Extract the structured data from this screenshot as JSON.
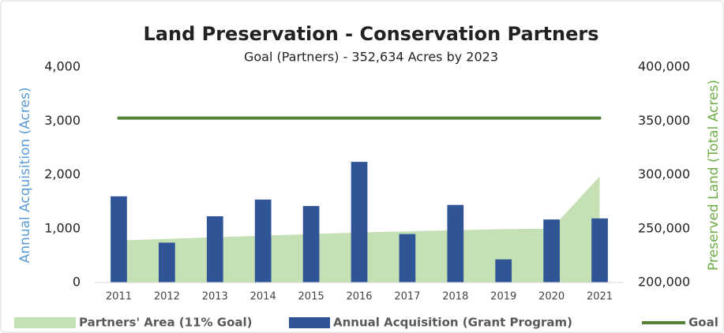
{
  "chart_data": {
    "type": "combo",
    "title": "Land Preservation - Conservation Partners",
    "subtitle": "Goal (Partners) - 352,634 Acres by 2023",
    "y_label": "Annual Acquisition (Acres)",
    "y2_label": "Preserved Land (Total Acres)",
    "categories": [
      "2011",
      "2012",
      "2013",
      "2014",
      "2015",
      "2016",
      "2017",
      "2018",
      "2019",
      "2020",
      "2021"
    ],
    "series": [
      {
        "name": "Partners' Area (11% Goal)",
        "type": "area",
        "axis": "y2",
        "color": "#c5e0b4",
        "values": [
          239000,
          240500,
          242000,
          243500,
          245000,
          246500,
          247500,
          248500,
          249500,
          250000,
          298500
        ]
      },
      {
        "name": "Annual Acquisition  (Grant Program)",
        "type": "bar",
        "axis": "y",
        "color": "#2f5597",
        "values": [
          1600,
          740,
          1230,
          1540,
          1420,
          2240,
          900,
          1440,
          430,
          1170,
          1190
        ]
      },
      {
        "name": "Goal",
        "type": "line",
        "axis": "y2",
        "color": "#548235",
        "values": [
          352634,
          352634,
          352634,
          352634,
          352634,
          352634,
          352634,
          352634,
          352634,
          352634,
          352634
        ]
      }
    ],
    "ylim": [
      0,
      4000
    ],
    "yticks": [
      0,
      {
        "value": 1000,
        "label": "1,000"
      },
      {
        "value": 2000,
        "label": "2,000"
      },
      {
        "value": 3000,
        "label": "3,000"
      },
      {
        "value": 4000,
        "label": "4,000"
      }
    ],
    "y2lim": [
      200000,
      400000
    ],
    "y2ticks": [
      {
        "value": 200000,
        "label": "200,000"
      },
      {
        "value": 250000,
        "label": "250,000"
      },
      {
        "value": 300000,
        "label": "300,000"
      },
      {
        "value": 350000,
        "label": "350,000"
      },
      {
        "value": 400000,
        "label": "400,000"
      }
    ],
    "legend": "bottom",
    "y_label_color": "#5b9bd5",
    "y2_label_color": "#70ad47"
  }
}
